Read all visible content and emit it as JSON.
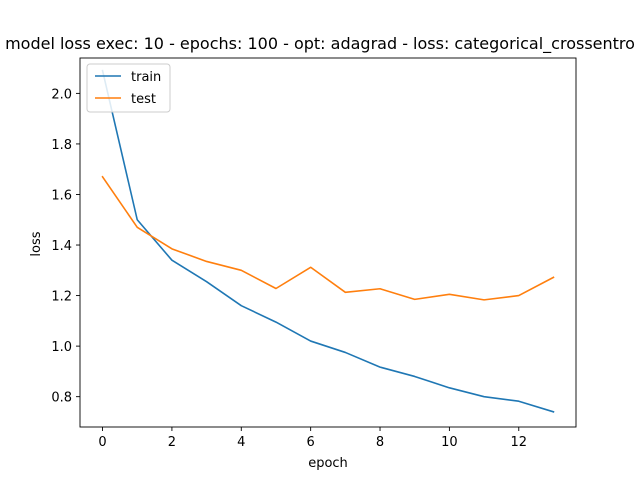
{
  "chart_data": {
    "type": "line",
    "title": "model loss exec: 10 - epochs: 100 - opt: adagrad - loss: categorical_crossentro",
    "xlabel": "epoch",
    "ylabel": "loss",
    "xlim": [
      -0.65,
      13.65
    ],
    "ylim": [
      0.68,
      2.14
    ],
    "xticks": [
      0,
      2,
      4,
      6,
      8,
      10,
      12
    ],
    "yticks": [
      0.8,
      1.0,
      1.2,
      1.4,
      1.6,
      1.8,
      2.0
    ],
    "x": [
      0,
      1,
      2,
      3,
      4,
      5,
      6,
      7,
      8,
      9,
      10,
      11,
      12,
      13
    ],
    "series": [
      {
        "name": "train",
        "color": "#1f77b4",
        "values": [
          2.09,
          1.5,
          1.34,
          1.255,
          1.16,
          1.095,
          1.02,
          0.975,
          0.917,
          0.88,
          0.835,
          0.8,
          0.782,
          0.74
        ]
      },
      {
        "name": "test",
        "color": "#ff7f0e",
        "values": [
          1.67,
          1.47,
          1.385,
          1.335,
          1.3,
          1.228,
          1.312,
          1.213,
          1.227,
          1.185,
          1.205,
          1.183,
          1.2,
          1.272
        ]
      }
    ],
    "legend": "top-left",
    "grid": false
  }
}
